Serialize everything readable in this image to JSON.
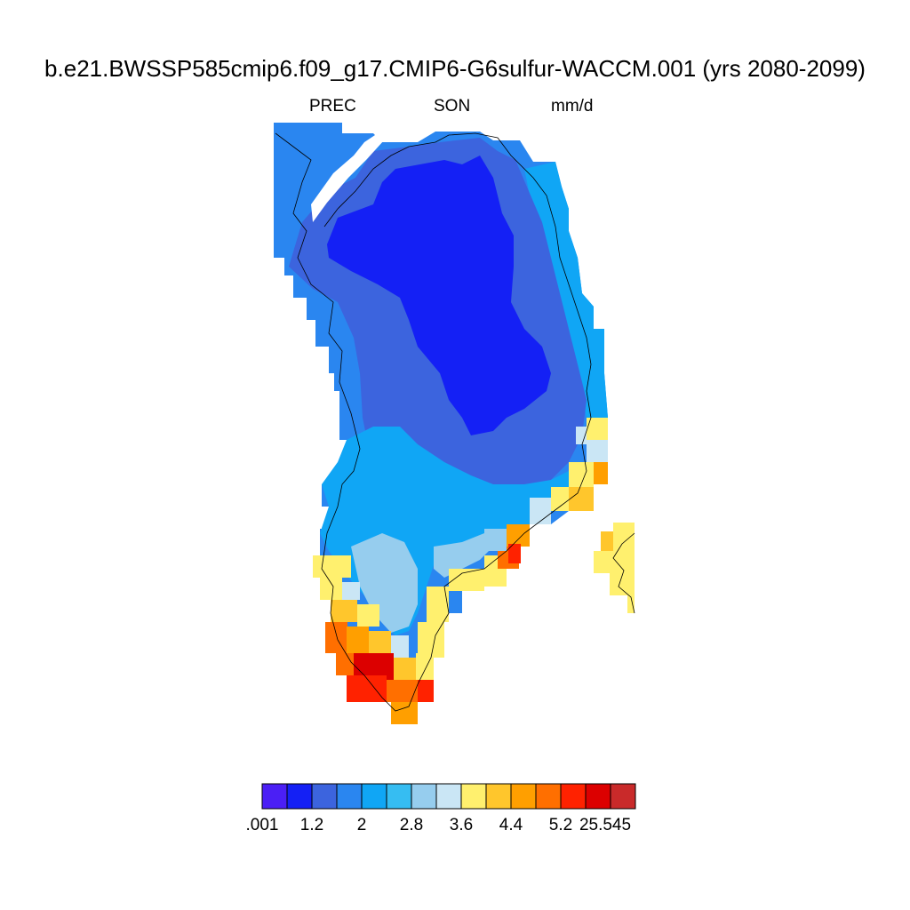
{
  "title": "b.e21.BWSSP585cmip6.f09_g17.CMIP6-G6sulfur-WACCM.001 (yrs 2080-2099)",
  "subtitle": {
    "variable": "PREC",
    "season": "SON",
    "units": "mm/d"
  },
  "colorbar": {
    "colors": [
      "#4b1ff5",
      "#1420f5",
      "#3c64de",
      "#2a86f0",
      "#10a6f5",
      "#36bdf2",
      "#96cdee",
      "#cae6f5",
      "#fff06e",
      "#ffc62c",
      "#ff9f00",
      "#ff6f00",
      "#ff2200",
      "#dc0000",
      "#c92a2a"
    ],
    "tick_labels": [
      ".001",
      "1.2",
      "2",
      "2.8",
      "3.6",
      "4.4",
      "5.2",
      "25.545"
    ],
    "tick_label_positions": [
      0,
      2,
      4,
      6,
      8,
      10,
      12,
      13
    ],
    "sub_labels": [
      "25.545"
    ]
  },
  "map": {
    "region": "Greenland",
    "field": "PREC",
    "value_range": [
      0.001,
      25.545
    ],
    "coastline": true
  }
}
